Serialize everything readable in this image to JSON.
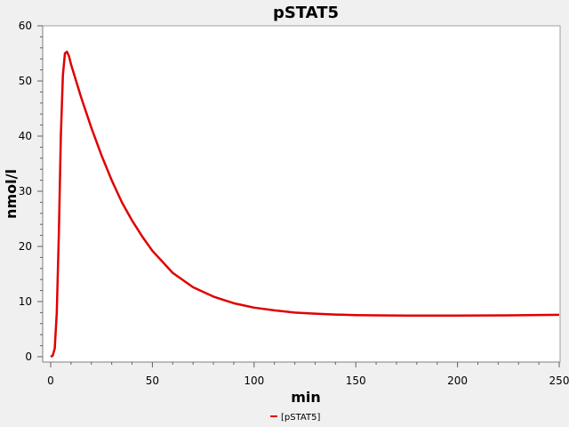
{
  "chart_data": {
    "type": "line",
    "title": "pSTAT5",
    "xlabel": "min",
    "ylabel": "nmol/l",
    "xlim": [
      0,
      250
    ],
    "ylim": [
      0,
      60
    ],
    "x_ticks": [
      0,
      50,
      100,
      150,
      200,
      250
    ],
    "y_ticks": [
      0,
      10,
      20,
      30,
      40,
      50,
      60
    ],
    "grid": false,
    "legend_position": "bottom-center",
    "series": [
      {
        "name": "[pSTAT5]",
        "color": "#e00000",
        "points": [
          [
            0,
            0
          ],
          [
            1,
            0.2
          ],
          [
            2,
            1.5
          ],
          [
            3,
            8
          ],
          [
            4,
            22
          ],
          [
            5,
            40
          ],
          [
            6,
            51
          ],
          [
            7,
            55
          ],
          [
            8,
            55.3
          ],
          [
            9,
            54.5
          ],
          [
            10,
            53
          ],
          [
            15,
            47
          ],
          [
            20,
            41.5
          ],
          [
            25,
            36.5
          ],
          [
            30,
            32
          ],
          [
            35,
            28
          ],
          [
            40,
            24.7
          ],
          [
            45,
            21.8
          ],
          [
            50,
            19.2
          ],
          [
            60,
            15.2
          ],
          [
            70,
            12.6
          ],
          [
            80,
            10.9
          ],
          [
            90,
            9.7
          ],
          [
            100,
            8.9
          ],
          [
            110,
            8.4
          ],
          [
            120,
            8.0
          ],
          [
            130,
            7.8
          ],
          [
            140,
            7.65
          ],
          [
            150,
            7.55
          ],
          [
            160,
            7.5
          ],
          [
            175,
            7.45
          ],
          [
            200,
            7.45
          ],
          [
            225,
            7.5
          ],
          [
            250,
            7.6
          ]
        ]
      }
    ]
  }
}
